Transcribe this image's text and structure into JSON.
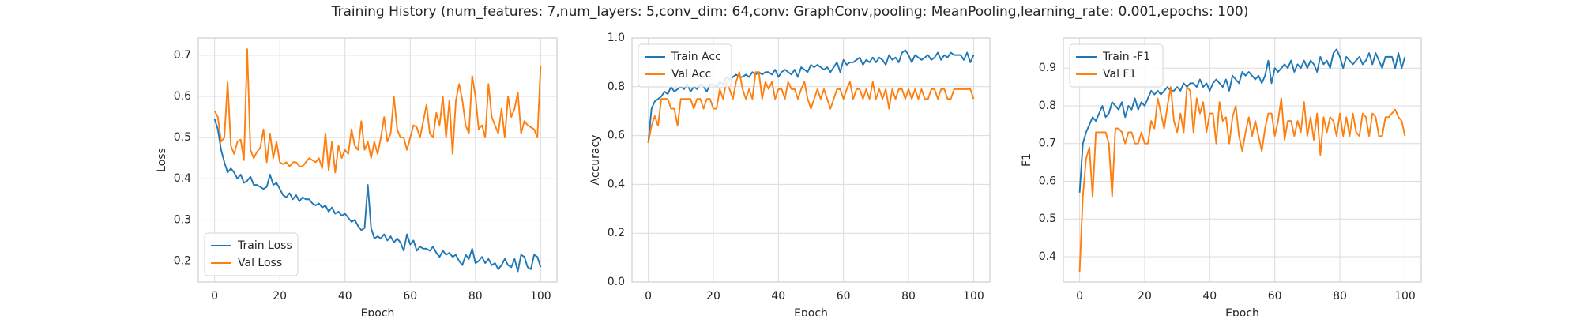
{
  "title": "Training History (num_features: 7,num_layers: 5,conv_dim: 64,conv: GraphConv,pooling: MeanPooling,learning_rate: 0.001,epochs: 100)",
  "chart_data": [
    {
      "type": "line",
      "ylabel": "Loss",
      "xlabel": "Epoch",
      "legend": "lower left",
      "grid": true,
      "xlim": [
        -5,
        105
      ],
      "xticks": [
        0,
        20,
        40,
        60,
        80,
        100
      ],
      "ylim": [
        0.149,
        0.742
      ],
      "yticks": [
        0.2,
        0.3,
        0.4,
        0.5,
        0.6,
        0.7
      ],
      "x": [
        0,
        1,
        2,
        3,
        4,
        5,
        6,
        7,
        8,
        9,
        10,
        11,
        12,
        13,
        14,
        15,
        16,
        17,
        18,
        19,
        20,
        21,
        22,
        23,
        24,
        25,
        26,
        27,
        28,
        29,
        30,
        31,
        32,
        33,
        34,
        35,
        36,
        37,
        38,
        39,
        40,
        41,
        42,
        43,
        44,
        45,
        46,
        47,
        48,
        49,
        50,
        51,
        52,
        53,
        54,
        55,
        56,
        57,
        58,
        59,
        60,
        61,
        62,
        63,
        64,
        65,
        66,
        67,
        68,
        69,
        70,
        71,
        72,
        73,
        74,
        75,
        76,
        77,
        78,
        79,
        80,
        81,
        82,
        83,
        84,
        85,
        86,
        87,
        88,
        89,
        90,
        91,
        92,
        93,
        94,
        95,
        96,
        97,
        98,
        99,
        100
      ],
      "series": [
        {
          "name": "Train Loss",
          "color": "#1f77b4",
          "values": [
            0.545,
            0.52,
            0.47,
            0.44,
            0.415,
            0.425,
            0.415,
            0.4,
            0.41,
            0.39,
            0.395,
            0.405,
            0.385,
            0.385,
            0.38,
            0.375,
            0.38,
            0.41,
            0.385,
            0.39,
            0.375,
            0.36,
            0.355,
            0.365,
            0.35,
            0.36,
            0.345,
            0.355,
            0.35,
            0.35,
            0.34,
            0.335,
            0.34,
            0.33,
            0.335,
            0.32,
            0.33,
            0.315,
            0.32,
            0.31,
            0.315,
            0.305,
            0.295,
            0.3,
            0.285,
            0.275,
            0.28,
            0.385,
            0.28,
            0.255,
            0.26,
            0.255,
            0.265,
            0.25,
            0.26,
            0.245,
            0.255,
            0.245,
            0.225,
            0.265,
            0.24,
            0.25,
            0.225,
            0.235,
            0.23,
            0.23,
            0.225,
            0.235,
            0.22,
            0.21,
            0.225,
            0.215,
            0.22,
            0.21,
            0.215,
            0.2,
            0.19,
            0.215,
            0.205,
            0.23,
            0.195,
            0.2,
            0.21,
            0.195,
            0.205,
            0.19,
            0.195,
            0.18,
            0.19,
            0.205,
            0.19,
            0.185,
            0.205,
            0.175,
            0.215,
            0.21,
            0.185,
            0.18,
            0.215,
            0.21,
            0.185
          ]
        },
        {
          "name": "Val Loss",
          "color": "#ff7f0e",
          "values": [
            0.565,
            0.55,
            0.49,
            0.5,
            0.635,
            0.48,
            0.46,
            0.49,
            0.495,
            0.445,
            0.715,
            0.47,
            0.45,
            0.465,
            0.475,
            0.52,
            0.44,
            0.51,
            0.45,
            0.49,
            0.44,
            0.435,
            0.44,
            0.43,
            0.44,
            0.44,
            0.43,
            0.43,
            0.44,
            0.45,
            0.445,
            0.44,
            0.45,
            0.425,
            0.51,
            0.42,
            0.49,
            0.415,
            0.48,
            0.45,
            0.47,
            0.46,
            0.52,
            0.48,
            0.47,
            0.54,
            0.47,
            0.49,
            0.45,
            0.49,
            0.46,
            0.5,
            0.55,
            0.49,
            0.51,
            0.6,
            0.52,
            0.5,
            0.5,
            0.47,
            0.5,
            0.53,
            0.525,
            0.5,
            0.54,
            0.58,
            0.51,
            0.5,
            0.56,
            0.53,
            0.6,
            0.5,
            0.59,
            0.46,
            0.59,
            0.63,
            0.59,
            0.53,
            0.51,
            0.65,
            0.6,
            0.52,
            0.53,
            0.5,
            0.63,
            0.55,
            0.53,
            0.51,
            0.57,
            0.5,
            0.6,
            0.55,
            0.57,
            0.61,
            0.51,
            0.54,
            0.53,
            0.525,
            0.52,
            0.5,
            0.675
          ]
        }
      ]
    },
    {
      "type": "line",
      "ylabel": "Accuracy",
      "xlabel": "Epoch",
      "legend": "upper left",
      "grid": true,
      "xlim": [
        -5,
        105
      ],
      "xticks": [
        0,
        20,
        40,
        60,
        80,
        100
      ],
      "ylim": [
        0,
        1
      ],
      "yticks": [
        {
          "value": 0,
          "label": "0.0"
        },
        0.2,
        0.4,
        0.6,
        0.8,
        {
          "value": 1,
          "label": "1.0"
        }
      ],
      "x": [
        0,
        1,
        2,
        3,
        4,
        5,
        6,
        7,
        8,
        9,
        10,
        11,
        12,
        13,
        14,
        15,
        16,
        17,
        18,
        19,
        20,
        21,
        22,
        23,
        24,
        25,
        26,
        27,
        28,
        29,
        30,
        31,
        32,
        33,
        34,
        35,
        36,
        37,
        38,
        39,
        40,
        41,
        42,
        43,
        44,
        45,
        46,
        47,
        48,
        49,
        50,
        51,
        52,
        53,
        54,
        55,
        56,
        57,
        58,
        59,
        60,
        61,
        62,
        63,
        64,
        65,
        66,
        67,
        68,
        69,
        70,
        71,
        72,
        73,
        74,
        75,
        76,
        77,
        78,
        79,
        80,
        81,
        82,
        83,
        84,
        85,
        86,
        87,
        88,
        89,
        90,
        91,
        92,
        93,
        94,
        95,
        96,
        97,
        98,
        99,
        100
      ],
      "series": [
        {
          "name": "Train Acc",
          "color": "#1f77b4",
          "values": [
            0.57,
            0.71,
            0.74,
            0.75,
            0.76,
            0.78,
            0.77,
            0.8,
            0.78,
            0.79,
            0.8,
            0.79,
            0.81,
            0.78,
            0.8,
            0.79,
            0.81,
            0.8,
            0.78,
            0.81,
            0.81,
            0.8,
            0.82,
            0.81,
            0.84,
            0.83,
            0.84,
            0.85,
            0.84,
            0.84,
            0.85,
            0.84,
            0.86,
            0.85,
            0.86,
            0.85,
            0.86,
            0.86,
            0.85,
            0.87,
            0.84,
            0.86,
            0.87,
            0.86,
            0.85,
            0.87,
            0.84,
            0.88,
            0.87,
            0.86,
            0.89,
            0.88,
            0.89,
            0.88,
            0.87,
            0.88,
            0.86,
            0.88,
            0.9,
            0.86,
            0.91,
            0.89,
            0.9,
            0.9,
            0.91,
            0.92,
            0.89,
            0.91,
            0.9,
            0.92,
            0.9,
            0.92,
            0.91,
            0.89,
            0.93,
            0.91,
            0.92,
            0.9,
            0.94,
            0.95,
            0.93,
            0.9,
            0.93,
            0.92,
            0.91,
            0.92,
            0.93,
            0.91,
            0.92,
            0.94,
            0.91,
            0.93,
            0.92,
            0.94,
            0.93,
            0.93,
            0.93,
            0.91,
            0.94,
            0.9,
            0.93
          ]
        },
        {
          "name": "Val Acc",
          "color": "#ff7f0e",
          "values": [
            0.57,
            0.64,
            0.68,
            0.64,
            0.75,
            0.75,
            0.75,
            0.71,
            0.71,
            0.64,
            0.75,
            0.75,
            0.75,
            0.75,
            0.71,
            0.75,
            0.75,
            0.71,
            0.75,
            0.75,
            0.71,
            0.71,
            0.79,
            0.75,
            0.82,
            0.79,
            0.75,
            0.82,
            0.86,
            0.79,
            0.75,
            0.79,
            0.75,
            0.86,
            0.86,
            0.75,
            0.82,
            0.79,
            0.82,
            0.75,
            0.79,
            0.79,
            0.75,
            0.82,
            0.79,
            0.79,
            0.75,
            0.79,
            0.82,
            0.75,
            0.71,
            0.75,
            0.79,
            0.75,
            0.79,
            0.75,
            0.71,
            0.75,
            0.79,
            0.79,
            0.75,
            0.79,
            0.82,
            0.75,
            0.79,
            0.79,
            0.75,
            0.79,
            0.75,
            0.82,
            0.75,
            0.79,
            0.75,
            0.79,
            0.71,
            0.79,
            0.75,
            0.79,
            0.79,
            0.75,
            0.79,
            0.75,
            0.79,
            0.75,
            0.79,
            0.75,
            0.75,
            0.79,
            0.79,
            0.75,
            0.79,
            0.79,
            0.75,
            0.75,
            0.79,
            0.79,
            0.79,
            0.79,
            0.79,
            0.79,
            0.75
          ]
        }
      ]
    },
    {
      "type": "line",
      "ylabel": "F1",
      "xlabel": "Epoch",
      "legend": "upper left",
      "grid": true,
      "xlim": [
        -5,
        105
      ],
      "xticks": [
        0,
        20,
        40,
        60,
        80,
        100
      ],
      "ylim": [
        0.333,
        0.98
      ],
      "yticks": [
        0.4,
        0.5,
        0.6,
        0.7,
        0.8,
        0.9
      ],
      "x": [
        0,
        1,
        2,
        3,
        4,
        5,
        6,
        7,
        8,
        9,
        10,
        11,
        12,
        13,
        14,
        15,
        16,
        17,
        18,
        19,
        20,
        21,
        22,
        23,
        24,
        25,
        26,
        27,
        28,
        29,
        30,
        31,
        32,
        33,
        34,
        35,
        36,
        37,
        38,
        39,
        40,
        41,
        42,
        43,
        44,
        45,
        46,
        47,
        48,
        49,
        50,
        51,
        52,
        53,
        54,
        55,
        56,
        57,
        58,
        59,
        60,
        61,
        62,
        63,
        64,
        65,
        66,
        67,
        68,
        69,
        70,
        71,
        72,
        73,
        74,
        75,
        76,
        77,
        78,
        79,
        80,
        81,
        82,
        83,
        84,
        85,
        86,
        87,
        88,
        89,
        90,
        91,
        92,
        93,
        94,
        95,
        96,
        97,
        98,
        99,
        100
      ],
      "series": [
        {
          "name": "Train -F1",
          "color": "#1f77b4",
          "values": [
            0.57,
            0.7,
            0.73,
            0.75,
            0.77,
            0.76,
            0.78,
            0.8,
            0.77,
            0.78,
            0.81,
            0.8,
            0.79,
            0.81,
            0.77,
            0.8,
            0.79,
            0.82,
            0.79,
            0.81,
            0.8,
            0.82,
            0.84,
            0.83,
            0.84,
            0.83,
            0.84,
            0.85,
            0.84,
            0.84,
            0.85,
            0.84,
            0.86,
            0.85,
            0.86,
            0.86,
            0.85,
            0.87,
            0.85,
            0.86,
            0.84,
            0.86,
            0.87,
            0.86,
            0.85,
            0.87,
            0.84,
            0.88,
            0.87,
            0.86,
            0.89,
            0.88,
            0.89,
            0.88,
            0.87,
            0.88,
            0.86,
            0.88,
            0.92,
            0.86,
            0.9,
            0.89,
            0.9,
            0.91,
            0.9,
            0.92,
            0.89,
            0.91,
            0.9,
            0.92,
            0.9,
            0.92,
            0.91,
            0.89,
            0.93,
            0.91,
            0.92,
            0.9,
            0.94,
            0.95,
            0.93,
            0.9,
            0.93,
            0.92,
            0.91,
            0.92,
            0.93,
            0.91,
            0.92,
            0.94,
            0.91,
            0.94,
            0.92,
            0.9,
            0.93,
            0.93,
            0.93,
            0.9,
            0.94,
            0.9,
            0.93
          ]
        },
        {
          "name": "Val F1",
          "color": "#ff7f0e",
          "values": [
            0.36,
            0.56,
            0.66,
            0.69,
            0.56,
            0.73,
            0.73,
            0.73,
            0.73,
            0.7,
            0.56,
            0.74,
            0.74,
            0.73,
            0.7,
            0.73,
            0.73,
            0.7,
            0.7,
            0.73,
            0.7,
            0.7,
            0.76,
            0.74,
            0.82,
            0.78,
            0.74,
            0.8,
            0.85,
            0.76,
            0.73,
            0.78,
            0.73,
            0.85,
            0.84,
            0.73,
            0.82,
            0.78,
            0.81,
            0.73,
            0.78,
            0.78,
            0.7,
            0.81,
            0.76,
            0.77,
            0.7,
            0.77,
            0.8,
            0.72,
            0.68,
            0.73,
            0.77,
            0.72,
            0.76,
            0.72,
            0.68,
            0.74,
            0.78,
            0.78,
            0.72,
            0.76,
            0.82,
            0.71,
            0.76,
            0.76,
            0.72,
            0.76,
            0.73,
            0.81,
            0.72,
            0.77,
            0.71,
            0.78,
            0.67,
            0.77,
            0.73,
            0.77,
            0.76,
            0.72,
            0.78,
            0.72,
            0.77,
            0.72,
            0.78,
            0.73,
            0.72,
            0.78,
            0.77,
            0.72,
            0.78,
            0.77,
            0.72,
            0.72,
            0.77,
            0.77,
            0.78,
            0.79,
            0.77,
            0.76,
            0.72
          ]
        }
      ]
    }
  ]
}
